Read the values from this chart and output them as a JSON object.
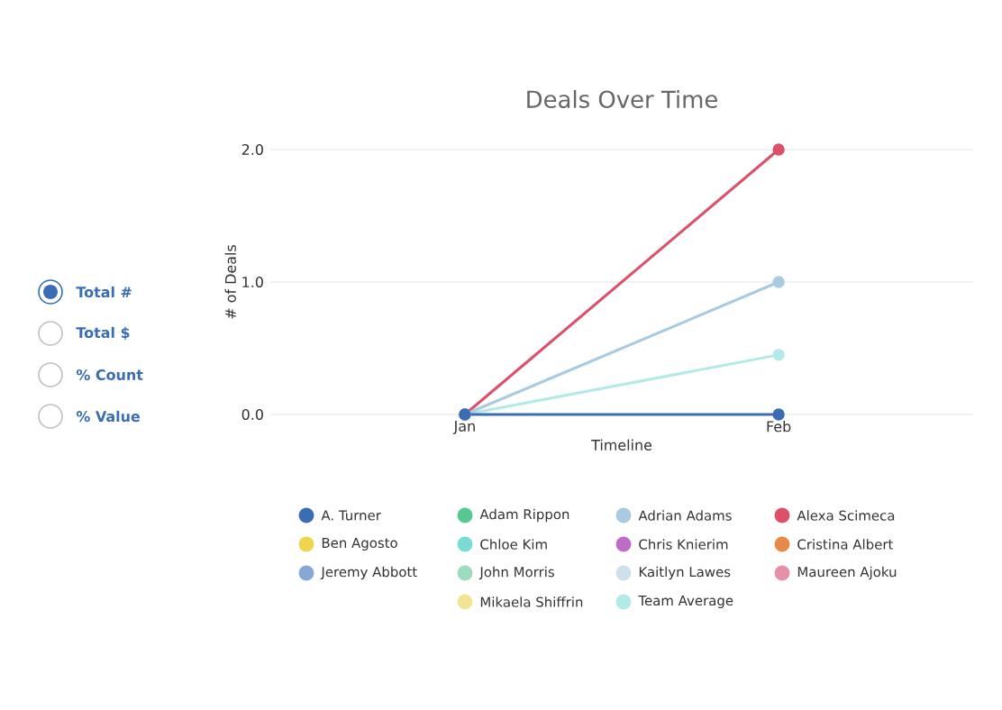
{
  "chart_data": {
    "type": "line",
    "title": "Deals Over Time",
    "xlabel": "Timeline",
    "ylabel": "# of Deals",
    "categories": [
      "Jan",
      "Feb"
    ],
    "series": [
      {
        "name": "A. Turner",
        "color": "#3a6db3",
        "values": [
          0,
          0
        ]
      },
      {
        "name": "Adam Rippon",
        "color": "#55c98f",
        "values": [
          null,
          null
        ]
      },
      {
        "name": "Adrian Adams",
        "color": "#a8cbe0",
        "values": [
          0,
          1
        ]
      },
      {
        "name": "Alexa Scimeca",
        "color": "#dc5069",
        "values": [
          0,
          2
        ]
      },
      {
        "name": "Ben Agosto",
        "color": "#efd44f",
        "values": [
          null,
          null
        ]
      },
      {
        "name": "Chloe Kim",
        "color": "#7adbd6",
        "values": [
          null,
          null
        ]
      },
      {
        "name": "Chris Knierim",
        "color": "#bf6cc6",
        "values": [
          null,
          null
        ]
      },
      {
        "name": "Cristina Albert",
        "color": "#e8894a",
        "values": [
          null,
          null
        ]
      },
      {
        "name": "Jeremy Abbott",
        "color": "#88a8d4",
        "values": [
          null,
          null
        ]
      },
      {
        "name": "John Morris",
        "color": "#9fdcbd",
        "values": [
          null,
          null
        ]
      },
      {
        "name": "Kaitlyn Lawes",
        "color": "#cde0ec",
        "values": [
          null,
          null
        ]
      },
      {
        "name": "Maureen Ajoku",
        "color": "#e691a8",
        "values": [
          null,
          null
        ]
      },
      {
        "name": "Mikaela Shiffrin",
        "color": "#f3e494",
        "values": [
          null,
          null
        ]
      },
      {
        "name": "Team Average",
        "color": "#b3e9e6",
        "values": [
          0,
          0.45
        ]
      }
    ],
    "ylim": [
      0,
      2
    ],
    "yticks": [
      {
        "value": 0,
        "label": "0.0"
      },
      {
        "value": 1,
        "label": "1.0"
      },
      {
        "value": 2,
        "label": "2.0"
      }
    ],
    "grid": "y",
    "legend": "bottom",
    "marker": "circle",
    "line_style": "solid",
    "annotations": [
      "Total #",
      "Total $",
      "% Count",
      "% Value"
    ]
  }
}
